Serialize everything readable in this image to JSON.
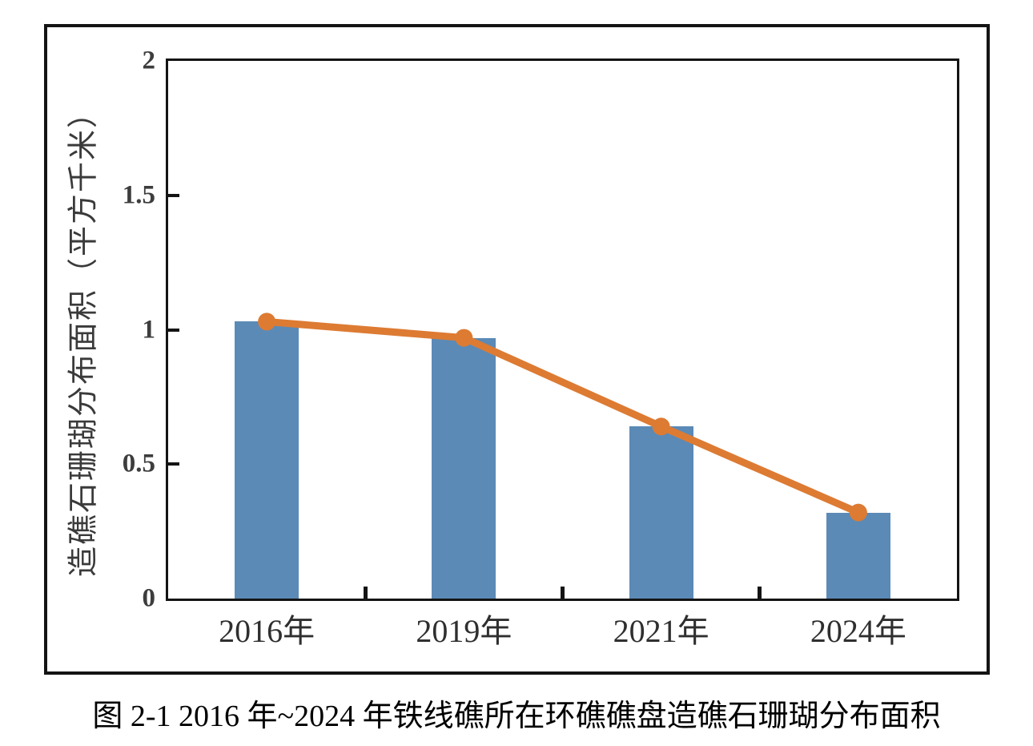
{
  "figure": {
    "caption": "图 2-1 2016 年~2024 年铁线礁所在环礁礁盘造礁石珊瑚分布面积"
  },
  "chart_data": {
    "type": "bar",
    "subtype": "bar-with-line-overlay",
    "categories": [
      "2016年",
      "2019年",
      "2021年",
      "2024年"
    ],
    "series": [
      {
        "name": "bar-series",
        "type": "bar",
        "values": [
          1.03,
          0.97,
          0.64,
          0.32
        ]
      },
      {
        "name": "line-series",
        "type": "line",
        "values": [
          1.03,
          0.97,
          0.64,
          0.32
        ]
      }
    ],
    "title": "",
    "xlabel": "",
    "ylabel": "造礁石珊瑚分布面积（平方千米）",
    "ylim": [
      0,
      2
    ],
    "yticks": [
      "0",
      "0.5",
      "1",
      "1.5",
      "2"
    ],
    "grid": false,
    "legend": "none"
  },
  "colors": {
    "bar": "#5b8ab6",
    "line": "#dd7b33",
    "axis": "#141414",
    "tick_label": "#3d3d3d",
    "category_label": "#2f2f2f",
    "caption": "#000000"
  }
}
